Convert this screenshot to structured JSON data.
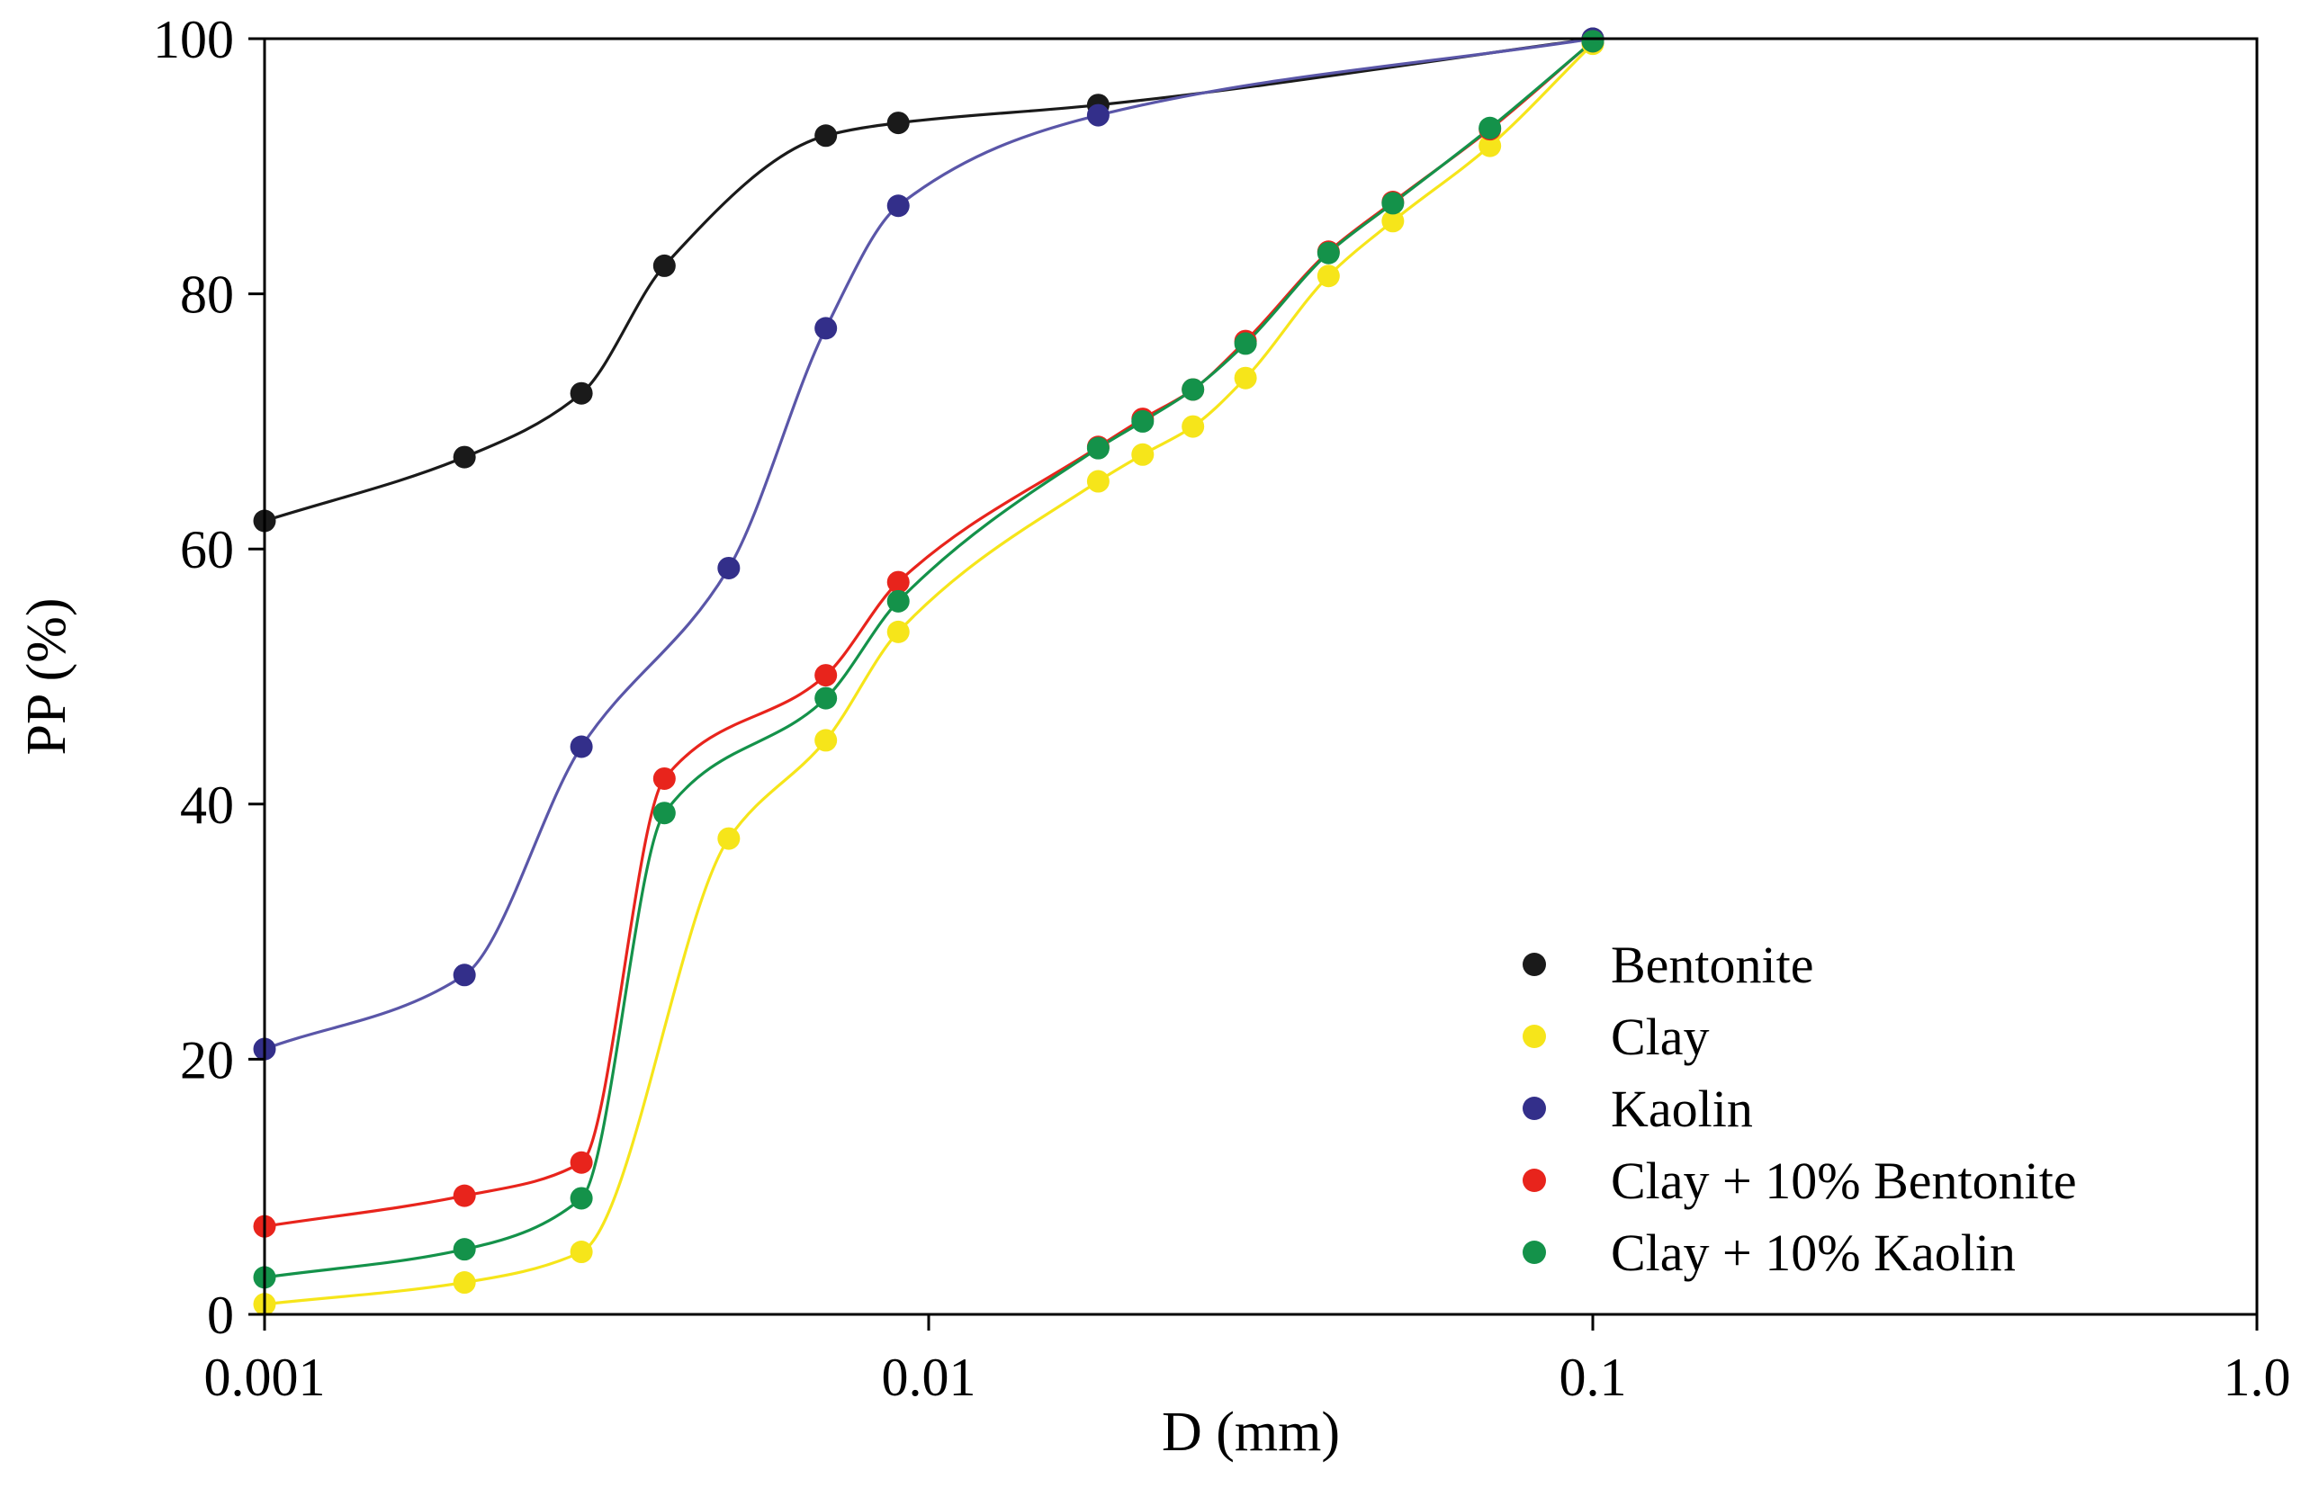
{
  "chart_data": {
    "type": "line",
    "title": "",
    "xlabel": "D (mm)",
    "ylabel": "PP (%)",
    "xscale": "log",
    "xlim": [
      0.001,
      1.0
    ],
    "ylim": [
      0,
      100
    ],
    "xticks": [
      0.001,
      0.01,
      0.1,
      1.0
    ],
    "xtick_labels": [
      "0.001",
      "0.01",
      "0.1",
      "1.0"
    ],
    "yticks": [
      0,
      20,
      40,
      60,
      80,
      100
    ],
    "ytick_labels": [
      "0",
      "20",
      "40",
      "60",
      "80",
      "100"
    ],
    "grid": false,
    "legend_position": "bottom-right",
    "series": [
      {
        "name": "Bentonite",
        "color": "#1a1a1a",
        "line_color": "#1a1a1a",
        "x": [
          0.001,
          0.002,
          0.003,
          0.004,
          0.007,
          0.009,
          0.018,
          0.1
        ],
        "y": [
          62.2,
          67.2,
          72.2,
          82.2,
          92.4,
          93.4,
          94.8,
          100
        ]
      },
      {
        "name": "Clay",
        "color": "#f6e51a",
        "line_color": "#f6e51a",
        "x": [
          0.001,
          0.002,
          0.003,
          0.005,
          0.007,
          0.009,
          0.018,
          0.021,
          0.025,
          0.03,
          0.04,
          0.05,
          0.07,
          0.1
        ],
        "y": [
          0.8,
          2.5,
          4.9,
          37.3,
          45.0,
          53.5,
          65.3,
          67.4,
          69.6,
          73.4,
          81.4,
          85.7,
          91.6,
          99.6
        ]
      },
      {
        "name": "Kaolin",
        "color": "#332f8a",
        "line_color": "#5a56a8",
        "x": [
          0.001,
          0.002,
          0.003,
          0.005,
          0.007,
          0.009,
          0.018,
          0.1
        ],
        "y": [
          20.8,
          26.6,
          44.5,
          58.5,
          77.3,
          86.9,
          94.0,
          100
        ]
      },
      {
        "name": "Clay + 10% Bentonite",
        "color": "#e8241c",
        "line_color": "#e8241c",
        "x": [
          0.001,
          0.002,
          0.003,
          0.004,
          0.007,
          0.009,
          0.018,
          0.021,
          0.025,
          0.03,
          0.04,
          0.05,
          0.07,
          0.1
        ],
        "y": [
          6.9,
          9.3,
          11.9,
          42.0,
          50.1,
          57.4,
          68.0,
          70.2,
          72.5,
          76.3,
          83.3,
          87.2,
          92.9,
          99.8
        ]
      },
      {
        "name": "Clay + 10% Kaolin",
        "color": "#14924a",
        "line_color": "#14924a",
        "x": [
          0.001,
          0.002,
          0.003,
          0.004,
          0.007,
          0.009,
          0.018,
          0.021,
          0.025,
          0.03,
          0.04,
          0.05,
          0.07,
          0.1
        ],
        "y": [
          2.9,
          5.1,
          9.1,
          39.3,
          48.3,
          55.9,
          67.9,
          70.0,
          72.5,
          76.1,
          83.2,
          87.1,
          93.0,
          99.8
        ]
      }
    ]
  }
}
